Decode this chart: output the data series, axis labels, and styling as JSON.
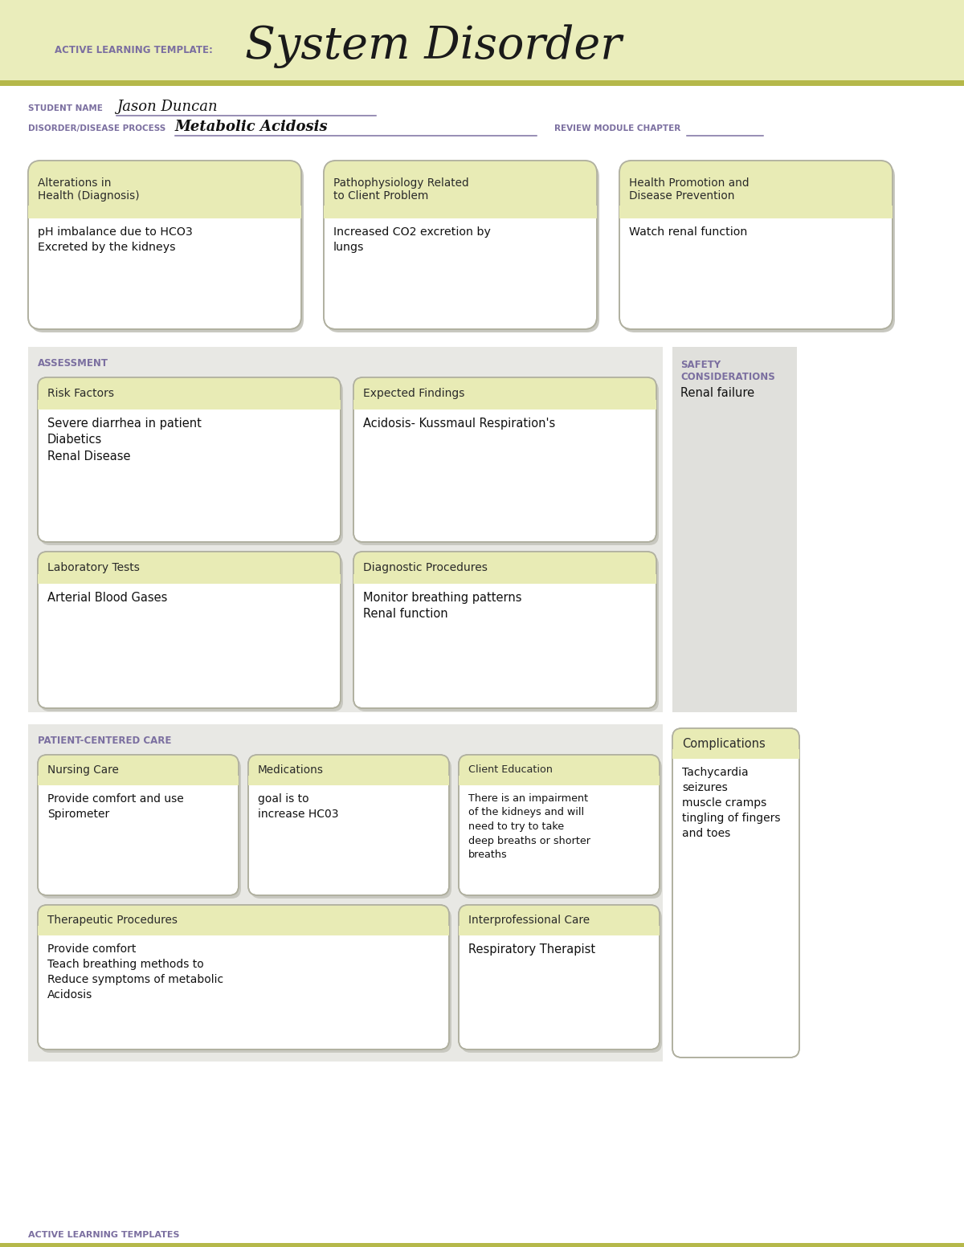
{
  "bg_color": "#ffffff",
  "header_bg": "#eaedbb",
  "header_stripe_color": "#b5b84a",
  "box_header_bg": "#e8ebb5",
  "box_body_bg": "#ffffff",
  "box_border": "#b0b0a0",
  "label_color": "#7b6fa0",
  "body_color": "#111111",
  "assess_bg": "#e8e8e4",
  "safety_bg": "#e0e0dc",
  "pcc_bg": "#e8e8e4",
  "comp_bg": "#f0f0ec",
  "template_label": "ACTIVE LEARNING TEMPLATE:",
  "title": "System Disorder",
  "student_label": "STUDENT NAME",
  "student_name": "Jason Duncan",
  "disorder_label": "DISORDER/DISEASE PROCESS",
  "disorder_name": "Metabolic Acidosis",
  "review_label": "REVIEW MODULE CHAPTER",
  "top_box1_title": "Alterations in\nHealth (Diagnosis)",
  "top_box1_body": "pH imbalance due to HCO3\nExcreted by the kidneys",
  "top_box2_title": "Pathophysiology Related\nto Client Problem",
  "top_box2_body": "Increased CO2 excretion by\nlungs",
  "top_box3_title": "Health Promotion and\nDisease Prevention",
  "top_box3_body": "Watch renal function",
  "assessment_label": "ASSESSMENT",
  "safety_label": "SAFETY\nCONSIDERATIONS",
  "safety_body": "Renal failure",
  "risk_title": "Risk Factors",
  "risk_body": "Severe diarrhea in patient\nDiabetics\nRenal Disease",
  "expected_title": "Expected Findings",
  "expected_body": "Acidosis- Kussmaul Respiration's",
  "lab_title": "Laboratory Tests",
  "lab_body": "Arterial Blood Gases",
  "diag_title": "Diagnostic Procedures",
  "diag_body": "Monitor breathing patterns\nRenal function",
  "patient_care_label": "PATIENT-CENTERED CARE",
  "complications_title": "Complications",
  "complications_body": "Tachycardia\nseizures\nmuscle cramps\ntingling of fingers\nand toes",
  "nursing_title": "Nursing Care",
  "nursing_body": "Provide comfort and use\nSpirometer",
  "med_title": "Medications",
  "med_body": "goal is to\nincrease HC03",
  "client_ed_title": "Client Education",
  "client_ed_body": "There is an impairment\nof the kidneys and will\nneed to try to take\ndeep breaths or shorter\nbreaths",
  "therapeutic_title": "Therapeutic Procedures",
  "therapeutic_body": "Provide comfort\nTeach breathing methods to\nReduce symptoms of metabolic\nAcidosis",
  "interpro_title": "Interprofessional Care",
  "interpro_body": "Respiratory Therapist",
  "footer_label": "ACTIVE LEARNING TEMPLATES"
}
